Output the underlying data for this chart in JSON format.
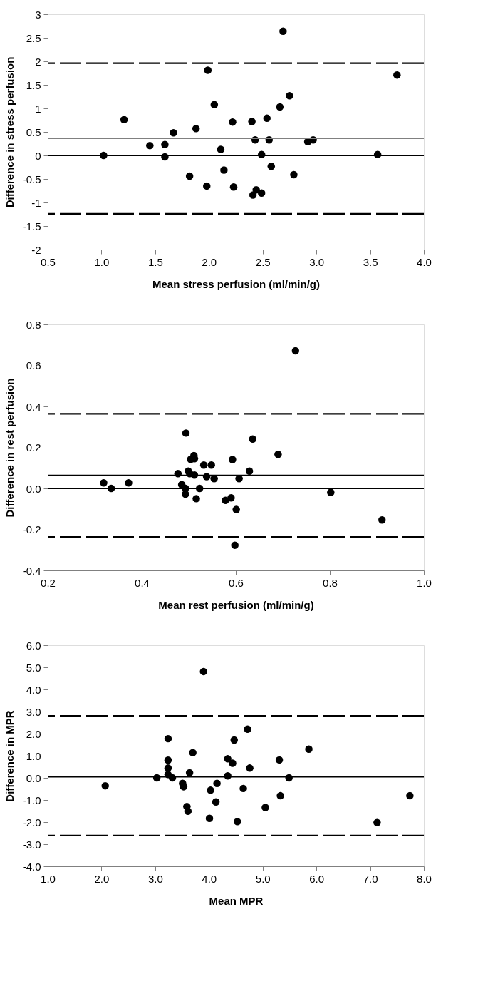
{
  "chart_data": [
    {
      "type": "scatter",
      "xlabel": "Mean stress perfusion (ml/min/g)",
      "ylabel": "Difference in stress perfusion",
      "marker": "circle",
      "grid": false,
      "xlim": [
        0.5,
        4.0
      ],
      "xticks": [
        {
          "value": 0.5,
          "label": "0.5"
        },
        {
          "value": 1,
          "label": "1.0"
        },
        {
          "value": 1.5,
          "label": "1.5"
        },
        {
          "value": 2,
          "label": "2.0"
        },
        {
          "value": 2.5,
          "label": "2.5"
        },
        {
          "value": 3,
          "label": "3.0"
        },
        {
          "value": 3.5,
          "label": "3.5"
        },
        {
          "value": 4,
          "label": "4.0"
        }
      ],
      "ylim": [
        -2,
        3
      ],
      "yticks": [
        -2,
        -1.5,
        -1,
        -0.5,
        0,
        0.5,
        1,
        1.5,
        2,
        2.5,
        3
      ],
      "series": [
        {
          "color": "#000000",
          "x": [
            1.02,
            1.21,
            1.45,
            1.59,
            1.59,
            1.67,
            1.82,
            1.88,
            1.98,
            1.99,
            2.05,
            2.11,
            2.14,
            2.22,
            2.23,
            2.4,
            2.41,
            2.43,
            2.44,
            2.49,
            2.49,
            2.54,
            2.56,
            2.58,
            2.66,
            2.69,
            2.75,
            2.79,
            2.92,
            2.97,
            3.57,
            3.75
          ],
          "values": [
            0,
            0.76,
            0.21,
            0.23,
            -0.03,
            0.48,
            -0.44,
            0.57,
            -0.65,
            1.81,
            1.08,
            0.13,
            -0.31,
            0.71,
            -0.67,
            0.72,
            -0.84,
            0.33,
            -0.73,
            0.02,
            -0.8,
            0.79,
            0.33,
            -0.23,
            1.03,
            2.64,
            1.27,
            -0.41,
            0.29,
            0.33,
            0.02,
            1.71
          ]
        }
      ],
      "ref_lines": [
        {
          "axis": "y",
          "value": 1.96,
          "color": "#000000",
          "line_style": "dashed"
        },
        {
          "axis": "y",
          "value": 0.36,
          "color": "#808080",
          "line_style": "solid"
        },
        {
          "axis": "y",
          "value": 0,
          "color": "#000000",
          "line_style": "solid"
        },
        {
          "axis": "y",
          "value": -1.24,
          "color": "#000000",
          "line_style": "dashed"
        }
      ]
    },
    {
      "type": "scatter",
      "xlabel": "Mean rest perfusion (ml/min/g)",
      "ylabel": "Difference in rest perfusion",
      "marker": "circle",
      "grid": false,
      "xlim": [
        0.2,
        1.0
      ],
      "xticks": [
        0.2,
        0.4,
        0.6,
        0.8,
        {
          "value": 1,
          "label": "1.0"
        }
      ],
      "ylim": [
        -0.4,
        0.8
      ],
      "yticks": [
        -0.4,
        -0.2,
        {
          "value": 0,
          "label": "0.0"
        },
        0.2,
        0.4,
        0.6,
        0.8
      ],
      "series": [
        {
          "color": "#000000",
          "x": [
            0.319,
            0.335,
            0.372,
            0.477,
            0.485,
            0.493,
            0.493,
            0.494,
            0.499,
            0.502,
            0.504,
            0.511,
            0.512,
            0.512,
            0.516,
            0.523,
            0.532,
            0.538,
            0.548,
            0.554,
            0.578,
            0.59,
            0.593,
            0.598,
            0.601,
            0.607,
            0.629,
            0.636,
            0.69,
            0.727,
            0.802,
            0.911
          ],
          "values": [
            0.027,
            0.0,
            0.027,
            0.072,
            0.018,
            0.0,
            -0.028,
            0.27,
            0.084,
            0.072,
            0.142,
            0.16,
            0.145,
            0.065,
            -0.05,
            0.0,
            0.114,
            0.057,
            0.114,
            0.048,
            -0.058,
            -0.046,
            0.141,
            -0.277,
            -0.103,
            0.048,
            0.084,
            0.241,
            0.166,
            0.671,
            -0.019,
            -0.154
          ]
        }
      ],
      "ref_lines": [
        {
          "axis": "y",
          "value": 0.364,
          "color": "#000000",
          "line_style": "dashed"
        },
        {
          "axis": "y",
          "value": 0.063,
          "color": "#000000",
          "line_style": "solid"
        },
        {
          "axis": "y",
          "value": 0,
          "color": "#000000",
          "line_style": "solid"
        },
        {
          "axis": "y",
          "value": -0.237,
          "color": "#000000",
          "line_style": "dashed"
        }
      ]
    },
    {
      "type": "scatter",
      "xlabel": "Mean MPR",
      "ylabel": "Difference in MPR",
      "marker": "circle",
      "grid": false,
      "xlim": [
        1.0,
        8.0
      ],
      "xticks": [
        {
          "value": 1,
          "label": "1.0"
        },
        {
          "value": 2,
          "label": "2.0"
        },
        {
          "value": 3,
          "label": "3.0"
        },
        {
          "value": 4,
          "label": "4.0"
        },
        {
          "value": 5,
          "label": "5.0"
        },
        {
          "value": 6,
          "label": "6.0"
        },
        {
          "value": 7,
          "label": "7.0"
        },
        {
          "value": 8,
          "label": "8.0"
        }
      ],
      "ylim": [
        -4,
        6
      ],
      "yticks": [
        {
          "value": -4,
          "label": "-4.0"
        },
        {
          "value": -3,
          "label": "-3.0"
        },
        {
          "value": -2,
          "label": "-2.0"
        },
        {
          "value": -1,
          "label": "-1.0"
        },
        {
          "value": 0,
          "label": "0.0"
        },
        {
          "value": 1,
          "label": "1.0"
        },
        {
          "value": 2,
          "label": "2.0"
        },
        {
          "value": 3,
          "label": "3.0"
        },
        {
          "value": 4,
          "label": "4.0"
        },
        {
          "value": 5,
          "label": "5.0"
        },
        {
          "value": 6,
          "label": "6.0"
        }
      ],
      "series": [
        {
          "color": "#000000",
          "x": [
            2.07,
            3.03,
            3.24,
            3.24,
            3.24,
            3.24,
            3.32,
            3.51,
            3.53,
            3.59,
            3.61,
            3.64,
            3.7,
            3.9,
            4.01,
            4.03,
            4.13,
            4.15,
            4.35,
            4.35,
            4.44,
            4.47,
            4.53,
            4.64,
            4.72,
            4.76,
            5.05,
            5.31,
            5.33,
            5.49,
            5.86,
            7.13,
            7.74
          ],
          "values": [
            -0.36,
            0.0,
            1.77,
            0.8,
            0.44,
            0.15,
            0.0,
            -0.25,
            -0.4,
            -1.3,
            -1.51,
            0.23,
            1.14,
            4.81,
            -1.83,
            -0.56,
            -1.09,
            -0.25,
            0.86,
            0.09,
            0.66,
            1.71,
            -1.98,
            -0.48,
            2.2,
            0.44,
            -1.34,
            0.81,
            -0.81,
            0.0,
            1.3,
            -2.02,
            -0.81
          ]
        }
      ],
      "ref_lines": [
        {
          "axis": "y",
          "value": 2.8,
          "color": "#000000",
          "line_style": "dashed"
        },
        {
          "axis": "y",
          "value": 0.05,
          "color": "#000000",
          "line_style": "solid"
        },
        {
          "axis": "y",
          "value": -2.61,
          "color": "#000000",
          "line_style": "dashed"
        }
      ]
    }
  ]
}
